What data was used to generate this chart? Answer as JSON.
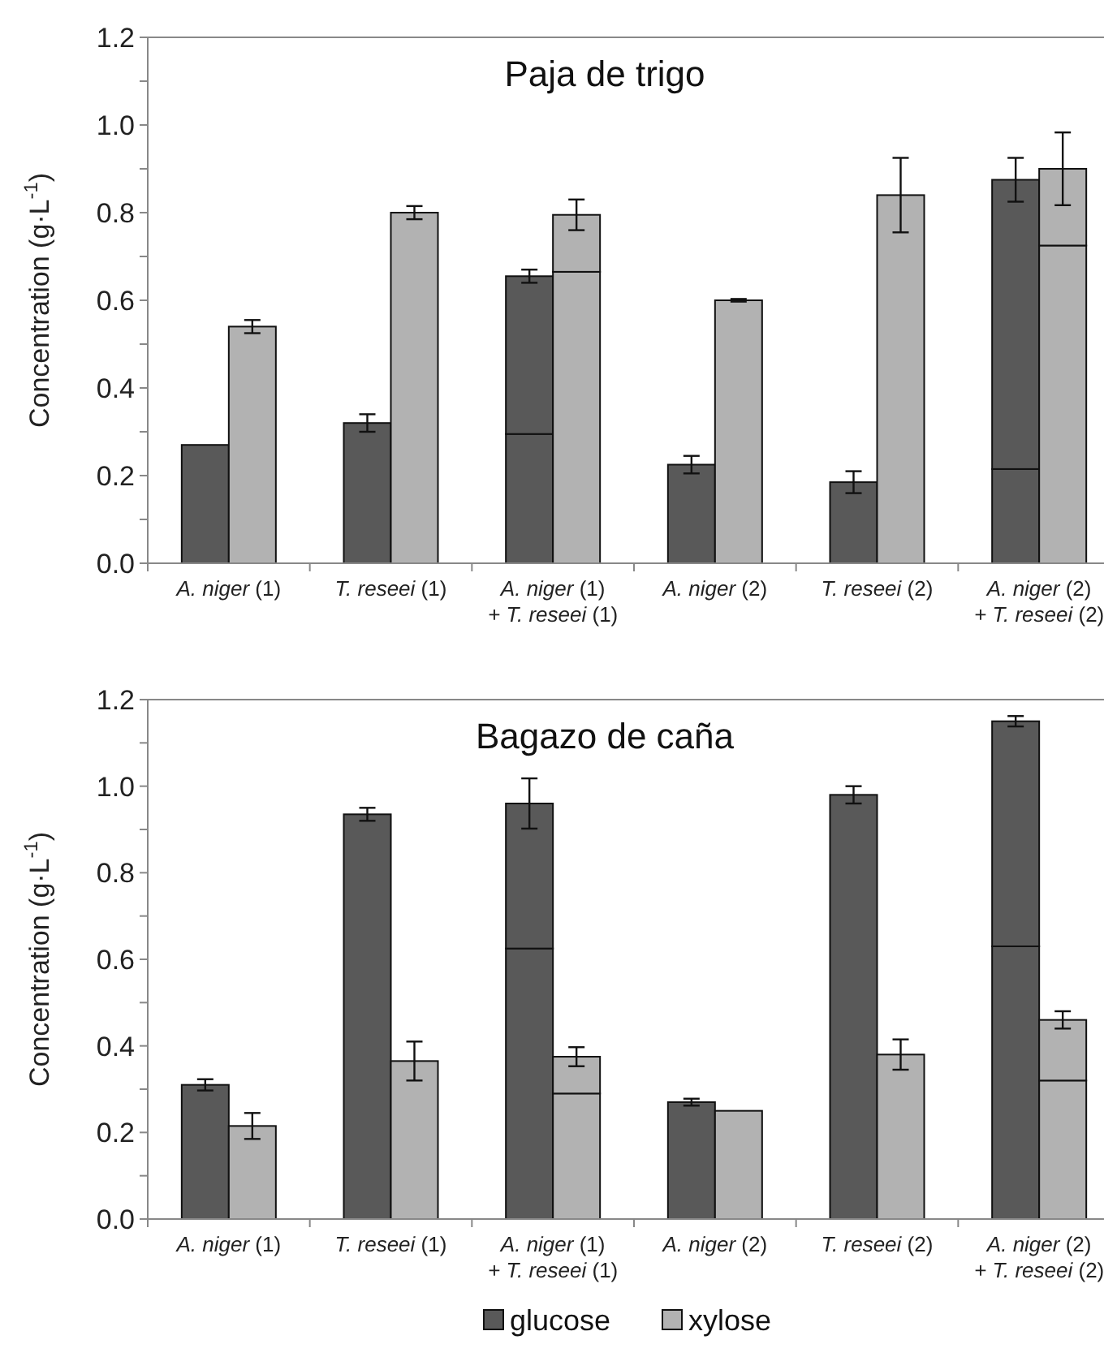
{
  "chart_data": [
    {
      "type": "bar",
      "title": "Paja de trigo",
      "ylabel": "Concentration (g·L$^{-1}$)",
      "grid": false,
      "categories": [
        "A. niger (1)",
        "T. reseei (1)",
        "A. niger (1)\n+ T. reseei (1)",
        "A. niger (2)",
        "T. reseei (2)",
        "A. niger (2)\n+ T. reseei (2)"
      ],
      "ylim": [
        0,
        1.2
      ],
      "yticks": [
        {
          "value": 0,
          "label": "0.0"
        },
        {
          "value": 0.1,
          "label": null
        },
        0.2,
        {
          "value": 0.3,
          "label": null
        },
        0.4,
        {
          "value": 0.5,
          "label": null
        },
        0.6,
        {
          "value": 0.7,
          "label": null
        },
        0.8,
        {
          "value": 0.9,
          "label": null
        },
        {
          "value": 1.0,
          "label": "1.0"
        },
        {
          "value": 1.1,
          "label": null
        },
        1.2
      ],
      "series": [
        {
          "color": "#595959",
          "base": [
            0,
            0,
            0,
            0,
            0,
            0
          ],
          "values": [
            0.27,
            0.32,
            0.295,
            0.225,
            0.185,
            0.215
          ],
          "errors": [
            null,
            0.02,
            null,
            0.02,
            0.025,
            null
          ]
        },
        {
          "color": "#595959",
          "base": [
            null,
            null,
            0.295,
            null,
            null,
            0.215
          ],
          "values": [
            null,
            null,
            0.36,
            null,
            null,
            0.66
          ],
          "errors": [
            null,
            null,
            0.015,
            null,
            null,
            0.05
          ]
        },
        {
          "color": "#b2b2b2",
          "base": [
            0,
            0,
            0,
            0,
            0,
            0
          ],
          "values": [
            0.54,
            0.8,
            0.665,
            0.6,
            0.84,
            0.725
          ],
          "errors": [
            0.015,
            0.015,
            null,
            0.003,
            0.085,
            null
          ]
        },
        {
          "color": "#b2b2b2",
          "base": [
            null,
            null,
            0.665,
            null,
            null,
            0.725
          ],
          "values": [
            null,
            null,
            0.13,
            null,
            null,
            0.175
          ],
          "errors": [
            null,
            null,
            0.035,
            null,
            null,
            0.083
          ]
        }
      ]
    },
    {
      "type": "bar",
      "title": "Bagazo de caña",
      "ylabel": "Concentration (g·L$^{-1}$)",
      "legend": "bottom",
      "grid": false,
      "categories": [
        "A. niger (1)",
        "T. reseei (1)",
        "A. niger (1)\n+ T. reseei (1)",
        "A. niger (2)",
        "T. reseei (2)",
        "A. niger (2)\n+ T. reseei (2)"
      ],
      "ylim": [
        0,
        1.2
      ],
      "yticks": [
        {
          "value": 0,
          "label": "0.0"
        },
        {
          "value": 0.1,
          "label": null
        },
        0.2,
        {
          "value": 0.3,
          "label": null
        },
        0.4,
        {
          "value": 0.5,
          "label": null
        },
        0.6,
        {
          "value": 0.7,
          "label": null
        },
        0.8,
        {
          "value": 0.9,
          "label": null
        },
        {
          "value": 1.0,
          "label": "1.0"
        },
        {
          "value": 1.1,
          "label": null
        },
        1.2
      ],
      "series": [
        {
          "name": "glucose",
          "color": "#595959",
          "base": [
            0,
            0,
            0,
            0,
            0,
            0
          ],
          "values": [
            0.31,
            0.935,
            0.625,
            0.27,
            0.98,
            0.63
          ],
          "errors": [
            0.013,
            0.015,
            null,
            0.008,
            0.02,
            null
          ]
        },
        {
          "color": "#595959",
          "base": [
            null,
            null,
            0.625,
            null,
            null,
            0.63
          ],
          "values": [
            null,
            null,
            0.335,
            null,
            null,
            0.52
          ],
          "errors": [
            null,
            null,
            0.058,
            null,
            null,
            0.012
          ]
        },
        {
          "name": "xylose",
          "color": "#b2b2b2",
          "base": [
            0,
            0,
            0,
            0,
            0,
            0
          ],
          "values": [
            0.215,
            0.365,
            0.29,
            0.25,
            0.38,
            0.32
          ],
          "errors": [
            0.03,
            0.045,
            null,
            null,
            0.035,
            null
          ]
        },
        {
          "color": "#b2b2b2",
          "base": [
            null,
            null,
            0.29,
            null,
            null,
            0.32
          ],
          "values": [
            null,
            null,
            0.085,
            null,
            null,
            0.14
          ],
          "errors": [
            null,
            null,
            0.022,
            null,
            null,
            0.02
          ]
        }
      ]
    }
  ]
}
